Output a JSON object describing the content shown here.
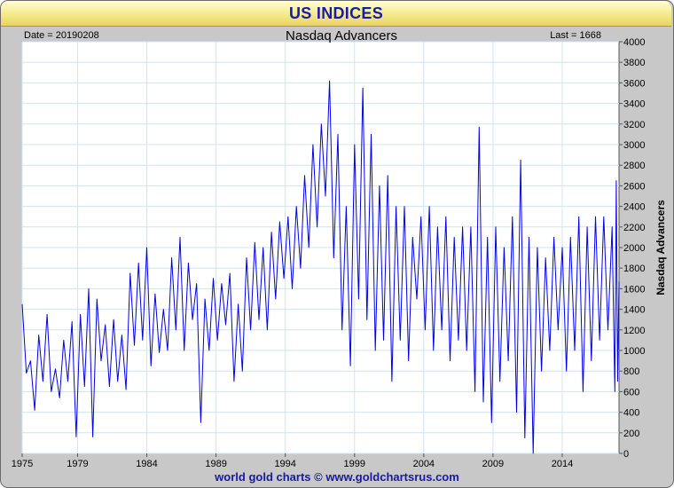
{
  "header": {
    "title": "US INDICES"
  },
  "footer": {
    "credit": "world gold charts © www.goldchartsrus.com"
  },
  "chart_data": {
    "type": "line",
    "title": "Nasdaq Advancers",
    "date_label": "Date = 20190208",
    "last_label": "Last = 1668",
    "ylabel": "Nasdaq Advancers",
    "xlabel": "",
    "xlim": [
      1975,
      2018.1
    ],
    "ylim": [
      0,
      4000
    ],
    "yticks": [
      0,
      200,
      400,
      600,
      800,
      1000,
      1200,
      1400,
      1600,
      1800,
      2000,
      2200,
      2400,
      2600,
      2800,
      3000,
      3200,
      3400,
      3600,
      3800,
      4000
    ],
    "xticks": [
      1975,
      1979,
      1984,
      1989,
      1994,
      1999,
      2004,
      2009,
      2014
    ],
    "grid": true,
    "line_color": "#0000ee",
    "series": [
      {
        "values": [
          [
            1975.0,
            1450
          ],
          [
            1975.3,
            780
          ],
          [
            1975.6,
            900
          ],
          [
            1975.9,
            420
          ],
          [
            1976.2,
            1150
          ],
          [
            1976.5,
            700
          ],
          [
            1976.8,
            1350
          ],
          [
            1977.1,
            600
          ],
          [
            1977.4,
            820
          ],
          [
            1977.7,
            540
          ],
          [
            1978.0,
            1100
          ],
          [
            1978.3,
            700
          ],
          [
            1978.6,
            1280
          ],
          [
            1978.9,
            160
          ],
          [
            1979.2,
            1350
          ],
          [
            1979.5,
            650
          ],
          [
            1979.8,
            1600
          ],
          [
            1980.1,
            160
          ],
          [
            1980.4,
            1500
          ],
          [
            1980.7,
            900
          ],
          [
            1981.0,
            1250
          ],
          [
            1981.3,
            650
          ],
          [
            1981.6,
            1300
          ],
          [
            1981.9,
            700
          ],
          [
            1982.2,
            1150
          ],
          [
            1982.5,
            620
          ],
          [
            1982.8,
            1750
          ],
          [
            1983.1,
            1050
          ],
          [
            1983.4,
            1850
          ],
          [
            1983.7,
            1100
          ],
          [
            1984.0,
            2000
          ],
          [
            1984.3,
            850
          ],
          [
            1984.6,
            1550
          ],
          [
            1984.9,
            980
          ],
          [
            1985.2,
            1400
          ],
          [
            1985.5,
            1000
          ],
          [
            1985.8,
            1900
          ],
          [
            1986.1,
            1200
          ],
          [
            1986.4,
            2100
          ],
          [
            1986.7,
            1000
          ],
          [
            1987.0,
            1850
          ],
          [
            1987.3,
            1300
          ],
          [
            1987.6,
            1650
          ],
          [
            1987.9,
            300
          ],
          [
            1988.2,
            1500
          ],
          [
            1988.5,
            1000
          ],
          [
            1988.8,
            1700
          ],
          [
            1989.1,
            1100
          ],
          [
            1989.4,
            1650
          ],
          [
            1989.7,
            1250
          ],
          [
            1990.0,
            1750
          ],
          [
            1990.3,
            700
          ],
          [
            1990.6,
            1450
          ],
          [
            1990.9,
            800
          ],
          [
            1991.2,
            1900
          ],
          [
            1991.5,
            1200
          ],
          [
            1991.8,
            2050
          ],
          [
            1992.1,
            1300
          ],
          [
            1992.4,
            2000
          ],
          [
            1992.7,
            1200
          ],
          [
            1993.0,
            2150
          ],
          [
            1993.3,
            1500
          ],
          [
            1993.6,
            2250
          ],
          [
            1993.9,
            1700
          ],
          [
            1994.2,
            2300
          ],
          [
            1994.5,
            1600
          ],
          [
            1994.8,
            2400
          ],
          [
            1995.1,
            1800
          ],
          [
            1995.4,
            2700
          ],
          [
            1995.7,
            2000
          ],
          [
            1996.0,
            3000
          ],
          [
            1996.3,
            2200
          ],
          [
            1996.6,
            3200
          ],
          [
            1996.9,
            2500
          ],
          [
            1997.2,
            3620
          ],
          [
            1997.5,
            1900
          ],
          [
            1997.8,
            3100
          ],
          [
            1998.1,
            1200
          ],
          [
            1998.4,
            2400
          ],
          [
            1998.7,
            850
          ],
          [
            1999.0,
            3000
          ],
          [
            1999.3,
            1500
          ],
          [
            1999.6,
            3550
          ],
          [
            1999.9,
            1300
          ],
          [
            2000.2,
            3100
          ],
          [
            2000.5,
            1000
          ],
          [
            2000.8,
            2600
          ],
          [
            2001.1,
            1100
          ],
          [
            2001.4,
            2700
          ],
          [
            2001.7,
            700
          ],
          [
            2002.0,
            2400
          ],
          [
            2002.3,
            1100
          ],
          [
            2002.6,
            2400
          ],
          [
            2002.9,
            900
          ],
          [
            2003.2,
            2100
          ],
          [
            2003.5,
            1500
          ],
          [
            2003.8,
            2300
          ],
          [
            2004.1,
            1200
          ],
          [
            2004.4,
            2400
          ],
          [
            2004.7,
            1000
          ],
          [
            2005.0,
            2200
          ],
          [
            2005.3,
            1200
          ],
          [
            2005.6,
            2300
          ],
          [
            2005.9,
            900
          ],
          [
            2006.2,
            2100
          ],
          [
            2006.5,
            1100
          ],
          [
            2006.8,
            2200
          ],
          [
            2007.1,
            1000
          ],
          [
            2007.4,
            2200
          ],
          [
            2007.7,
            600
          ],
          [
            2008.0,
            3170
          ],
          [
            2008.3,
            500
          ],
          [
            2008.6,
            2100
          ],
          [
            2008.9,
            300
          ],
          [
            2009.2,
            2200
          ],
          [
            2009.5,
            700
          ],
          [
            2009.8,
            2000
          ],
          [
            2010.1,
            900
          ],
          [
            2010.4,
            2300
          ],
          [
            2010.7,
            400
          ],
          [
            2011.0,
            2850
          ],
          [
            2011.3,
            150
          ],
          [
            2011.6,
            2100
          ],
          [
            2011.9,
            0
          ],
          [
            2012.2,
            2000
          ],
          [
            2012.5,
            800
          ],
          [
            2012.8,
            1900
          ],
          [
            2013.1,
            1000
          ],
          [
            2013.4,
            2100
          ],
          [
            2013.7,
            1200
          ],
          [
            2014.0,
            2000
          ],
          [
            2014.3,
            800
          ],
          [
            2014.6,
            2100
          ],
          [
            2014.9,
            1000
          ],
          [
            2015.2,
            2300
          ],
          [
            2015.5,
            600
          ],
          [
            2015.8,
            2200
          ],
          [
            2016.1,
            900
          ],
          [
            2016.4,
            2300
          ],
          [
            2016.7,
            1100
          ],
          [
            2017.0,
            2300
          ],
          [
            2017.3,
            1200
          ],
          [
            2017.6,
            2200
          ],
          [
            2017.8,
            600
          ],
          [
            2017.9,
            2650
          ],
          [
            2018.0,
            700
          ],
          [
            2018.1,
            1668
          ]
        ]
      }
    ]
  }
}
